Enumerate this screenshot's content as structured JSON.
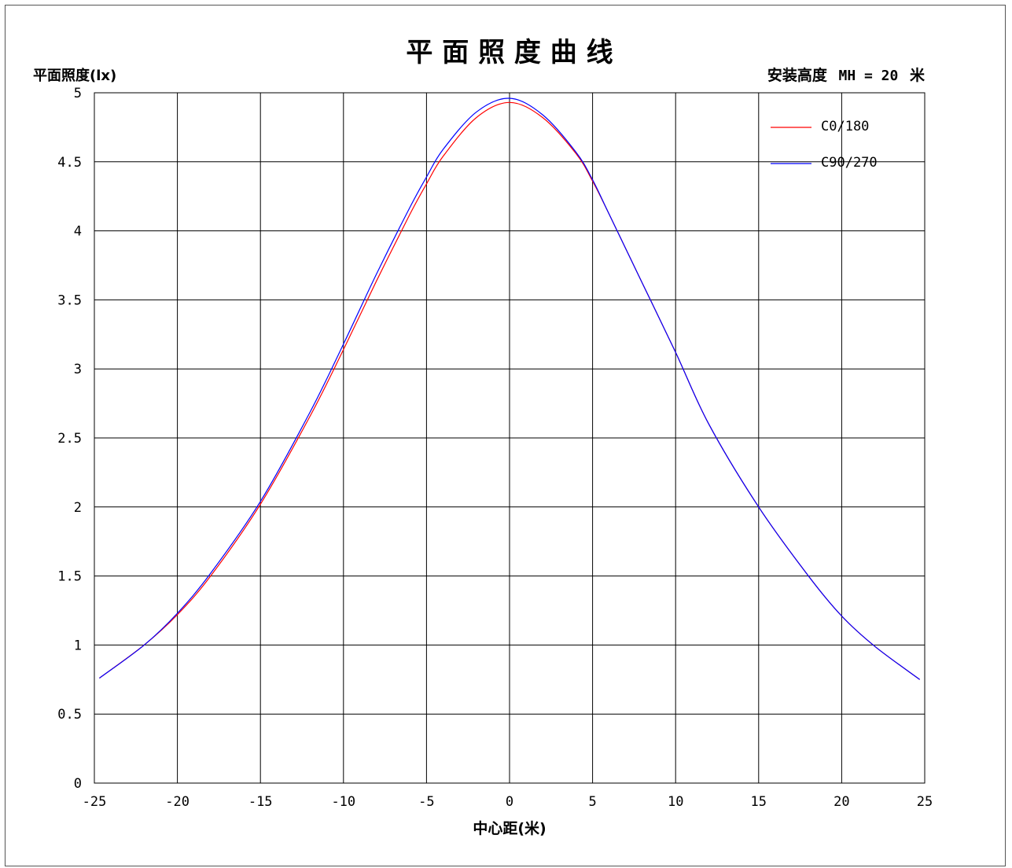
{
  "chart_data": {
    "type": "line",
    "title": "平 面 照 度 曲 线",
    "ylabel": "平面照度(lx)",
    "xlabel": "中心距(米)",
    "mounting_height": {
      "label": "安装高度",
      "value_text": "MH = 20",
      "unit": "米"
    },
    "xlim": [
      -25,
      25
    ],
    "ylim": [
      0,
      5
    ],
    "x_ticks": [
      "-25",
      "-20",
      "-15",
      "-10",
      "-5",
      "0",
      "5",
      "10",
      "15",
      "20",
      "25"
    ],
    "y_ticks": [
      "0",
      "0.5",
      "1",
      "1.5",
      "2",
      "2.5",
      "3",
      "3.5",
      "4",
      "4.5",
      "5"
    ],
    "grid": true,
    "legend_position": "top-right",
    "x": [
      -24.7,
      -22,
      -20,
      -18,
      -15,
      -12,
      -10,
      -8,
      -6,
      -5,
      -4,
      -2,
      0,
      2,
      4,
      5,
      6,
      8,
      10,
      12,
      15,
      18,
      20,
      22,
      24.7
    ],
    "series": [
      {
        "name": "C0/180",
        "color": "#ff0000",
        "values": [
          0.76,
          1.0,
          1.22,
          1.5,
          2.02,
          2.66,
          3.14,
          3.64,
          4.12,
          4.34,
          4.54,
          4.82,
          4.93,
          4.82,
          4.56,
          4.36,
          4.12,
          3.62,
          3.12,
          2.6,
          2.0,
          1.5,
          1.21,
          0.99,
          0.75
        ]
      },
      {
        "name": "C90/270",
        "color": "#0000ff",
        "values": [
          0.76,
          1.0,
          1.23,
          1.52,
          2.04,
          2.69,
          3.18,
          3.69,
          4.17,
          4.39,
          4.59,
          4.86,
          4.96,
          4.84,
          4.57,
          4.37,
          4.12,
          3.62,
          3.12,
          2.6,
          2.0,
          1.5,
          1.21,
          0.99,
          0.75
        ]
      }
    ]
  }
}
